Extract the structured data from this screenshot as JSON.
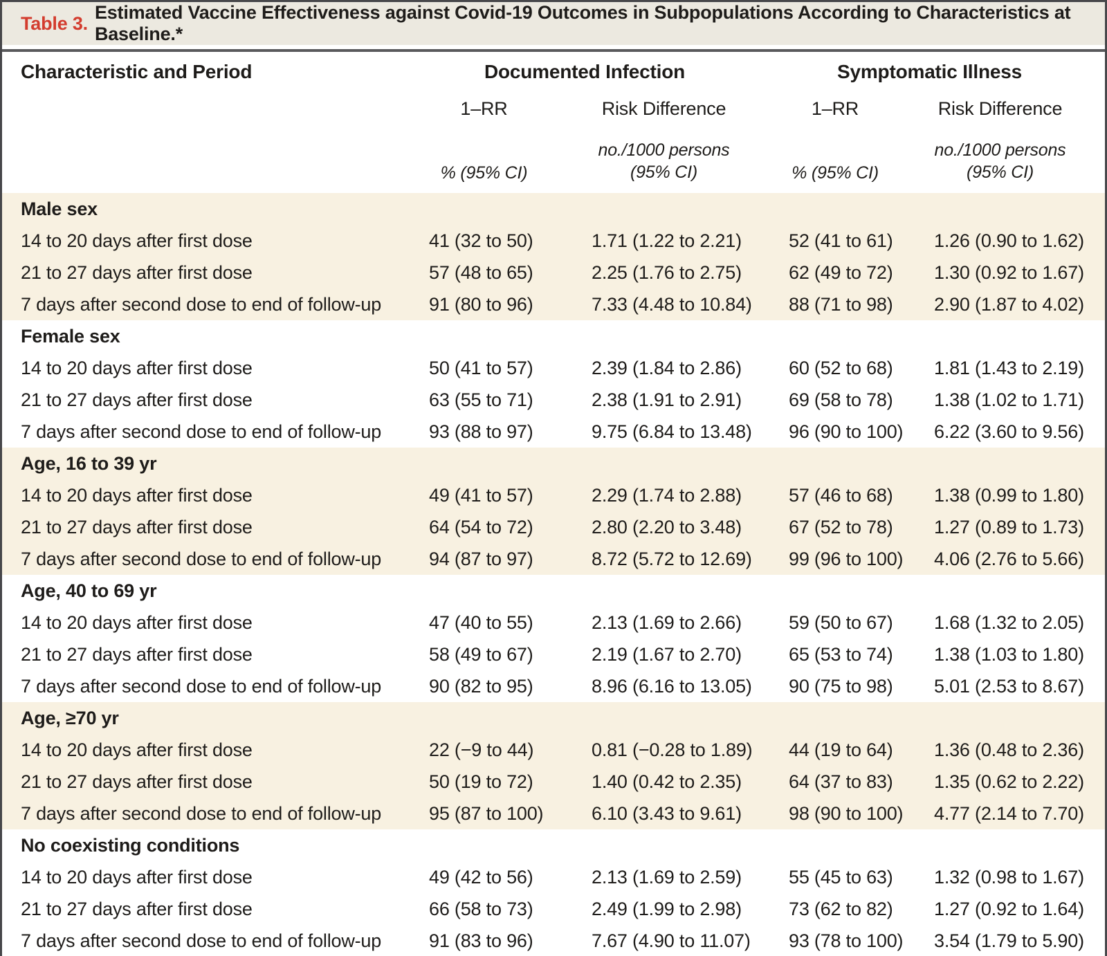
{
  "title": {
    "label": "Table 3.",
    "text": "Estimated Vaccine Effectiveness against Covid-19 Outcomes in Subpopulations According to Characteristics at Baseline.*"
  },
  "header": {
    "characteristic": "Characteristic and Period",
    "documented_infection": "Documented Infection",
    "symptomatic_illness": "Symptomatic Illness",
    "rr_label_doc": "1–RR",
    "risk_difference_label_doc": "Risk Difference",
    "rr_label_sym": "1–RR",
    "risk_difference_label_sym": "Risk Difference",
    "rr_units_doc": "% (95% CI)",
    "rr_units_sym": "% (95% CI)",
    "rd_units_line1": "no./1000 persons",
    "rd_units_line2": "(95% CI)"
  },
  "colors": {
    "shaded_band": "#f8f1e1",
    "title_band": "#ece9e0",
    "table_label_red": "#d33c2e",
    "heavy_rule_gray": "#5a5a5c",
    "frame_gray": "#47474a"
  },
  "groups": [
    {
      "name": "Male sex",
      "shaded": true,
      "rows": [
        {
          "period": "14 to 20 days after first dose",
          "di_rr": "41 (32 to 50)",
          "di_rd": "1.71 (1.22 to 2.21)",
          "si_rr": "52 (41 to 61)",
          "si_rd": "1.26 (0.90 to 1.62)"
        },
        {
          "period": "21 to 27 days after first dose",
          "di_rr": "57 (48 to 65)",
          "di_rd": "2.25 (1.76 to 2.75)",
          "si_rr": "62 (49 to 72)",
          "si_rd": "1.30 (0.92 to 1.67)"
        },
        {
          "period": "7 days after second dose to end of follow-up",
          "di_rr": "91 (80 to 96)",
          "di_rd": "7.33 (4.48 to 10.84)",
          "si_rr": "88 (71 to 98)",
          "si_rd": "2.90 (1.87 to 4.02)"
        }
      ]
    },
    {
      "name": "Female sex",
      "shaded": false,
      "rows": [
        {
          "period": "14 to 20 days after first dose",
          "di_rr": "50 (41 to 57)",
          "di_rd": "2.39 (1.84 to 2.86)",
          "si_rr": "60 (52 to 68)",
          "si_rd": "1.81 (1.43 to 2.19)"
        },
        {
          "period": "21 to 27 days after first dose",
          "di_rr": "63 (55 to 71)",
          "di_rd": "2.38 (1.91 to 2.91)",
          "si_rr": "69 (58 to 78)",
          "si_rd": "1.38 (1.02 to 1.71)"
        },
        {
          "period": "7 days after second dose to end of follow-up",
          "di_rr": "93 (88 to 97)",
          "di_rd": "9.75 (6.84 to 13.48)",
          "si_rr": "96 (90 to 100)",
          "si_rd": "6.22 (3.60 to 9.56)"
        }
      ]
    },
    {
      "name": "Age, 16 to 39 yr",
      "shaded": true,
      "rows": [
        {
          "period": "14 to 20 days after first dose",
          "di_rr": "49 (41 to 57)",
          "di_rd": "2.29 (1.74 to 2.88)",
          "si_rr": "57 (46 to 68)",
          "si_rd": "1.38 (0.99 to 1.80)"
        },
        {
          "period": "21 to 27 days after first dose",
          "di_rr": "64 (54 to 72)",
          "di_rd": "2.80 (2.20 to 3.48)",
          "si_rr": "67 (52 to 78)",
          "si_rd": "1.27 (0.89 to 1.73)"
        },
        {
          "period": "7 days after second dose to end of follow-up",
          "di_rr": "94 (87 to 97)",
          "di_rd": "8.72 (5.72 to 12.69)",
          "si_rr": "99 (96 to 100)",
          "si_rd": "4.06 (2.76 to 5.66)"
        }
      ]
    },
    {
      "name": "Age, 40 to 69 yr",
      "shaded": false,
      "rows": [
        {
          "period": "14 to 20 days after first dose",
          "di_rr": "47 (40 to 55)",
          "di_rd": "2.13 (1.69 to 2.66)",
          "si_rr": "59 (50 to 67)",
          "si_rd": "1.68 (1.32 to 2.05)"
        },
        {
          "period": "21 to 27 days after first dose",
          "di_rr": "58 (49 to 67)",
          "di_rd": "2.19 (1.67 to 2.70)",
          "si_rr": "65 (53 to 74)",
          "si_rd": "1.38 (1.03 to 1.80)"
        },
        {
          "period": "7 days after second dose to end of follow-up",
          "di_rr": "90 (82 to 95)",
          "di_rd": "8.96 (6.16 to 13.05)",
          "si_rr": "90 (75 to 98)",
          "si_rd": "5.01 (2.53 to 8.67)"
        }
      ]
    },
    {
      "name": "Age, ≥70 yr",
      "shaded": true,
      "rows": [
        {
          "period": "14 to 20 days after first dose",
          "di_rr": "22 (−9 to 44)",
          "di_rd": "0.81 (−0.28 to 1.89)",
          "si_rr": "44 (19 to 64)",
          "si_rd": "1.36 (0.48 to 2.36)"
        },
        {
          "period": "21 to 27 days after first dose",
          "di_rr": "50 (19 to 72)",
          "di_rd": "1.40 (0.42 to 2.35)",
          "si_rr": "64 (37 to 83)",
          "si_rd": "1.35 (0.62 to 2.22)"
        },
        {
          "period": "7 days after second dose to end of follow-up",
          "di_rr": "95 (87 to 100)",
          "di_rd": "6.10 (3.43 to 9.61)",
          "si_rr": "98 (90 to 100)",
          "si_rd": "4.77 (2.14 to 7.70)"
        }
      ]
    },
    {
      "name": "No coexisting conditions",
      "shaded": false,
      "rows": [
        {
          "period": "14 to 20 days after first dose",
          "di_rr": "49 (42 to 56)",
          "di_rd": "2.13 (1.69 to 2.59)",
          "si_rr": "55 (45 to 63)",
          "si_rd": "1.32 (0.98 to 1.67)"
        },
        {
          "period": "21 to 27 days after first dose",
          "di_rr": "66 (58 to 73)",
          "di_rd": "2.49 (1.99 to 2.98)",
          "si_rr": "73 (62 to 82)",
          "si_rd": "1.27 (0.92 to 1.64)"
        },
        {
          "period": "7 days after second dose to end of follow-up",
          "di_rr": "91 (83 to 96)",
          "di_rd": "7.67 (4.90 to 11.07)",
          "si_rr": "93 (78 to 100)",
          "si_rd": "3.54 (1.79 to 5.90)"
        }
      ]
    }
  ]
}
